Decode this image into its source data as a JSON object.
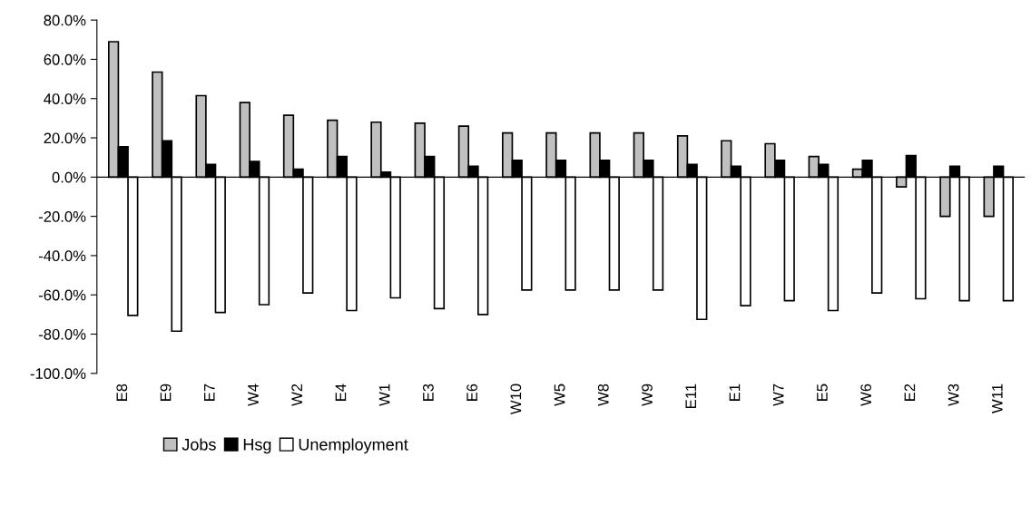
{
  "chart_data": {
    "type": "bar",
    "categories": [
      "E8",
      "E9",
      "E7",
      "W4",
      "W2",
      "E4",
      "W1",
      "E3",
      "E6",
      "W10",
      "W5",
      "W8",
      "W9",
      "E11",
      "E1",
      "W7",
      "E5",
      "W6",
      "E2",
      "W3",
      "W11"
    ],
    "series": [
      {
        "name": "Jobs",
        "color": "#c0c0c0",
        "values": [
          69,
          53.5,
          41.5,
          38,
          31.5,
          29,
          28,
          27.5,
          26,
          22.5,
          22.5,
          22.5,
          22.5,
          21,
          18.5,
          17,
          10.5,
          4,
          -5,
          -20,
          -20
        ]
      },
      {
        "name": "Hsg",
        "color": "#000000",
        "values": [
          15.5,
          18.5,
          6.5,
          8,
          4,
          10.5,
          2.5,
          10.5,
          5.5,
          8.5,
          8.5,
          8.5,
          8.5,
          6.5,
          5.5,
          8.5,
          6.5,
          8.5,
          11,
          5.5,
          5.5
        ]
      },
      {
        "name": "Unemployment",
        "color": "#ffffff",
        "values": [
          -70.5,
          -78.5,
          -69,
          -65,
          -59,
          -68,
          -61.5,
          -67,
          -70,
          -57.5,
          -57.5,
          -57.5,
          -57.5,
          -72.5,
          -65.5,
          -63,
          -68,
          -59,
          -62,
          -63,
          -63
        ]
      }
    ],
    "ylim": [
      -100,
      80
    ],
    "yticks": [
      {
        "value": -100,
        "label": "-100.0%"
      },
      {
        "value": -80,
        "label": "-80.0%"
      },
      {
        "value": -60,
        "label": "-60.0%"
      },
      {
        "value": -40,
        "label": "-40.0%"
      },
      {
        "value": -20,
        "label": "-20.0%"
      },
      {
        "value": 0,
        "label": "0.0%"
      },
      {
        "value": 20,
        "label": "20.0%"
      },
      {
        "value": 40,
        "label": "40.0%"
      },
      {
        "value": 60,
        "label": "60.0%"
      },
      {
        "value": 80,
        "label": "80.0%"
      }
    ],
    "legend": "bottom"
  }
}
